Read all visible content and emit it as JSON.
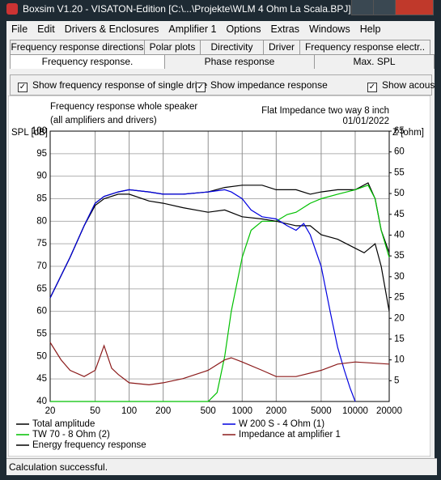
{
  "window": {
    "title": "Boxsim V1.20 - VISATON-Edition [C:\\...\\Projekte\\WLM 4 Ohm La Scala.BPJ]"
  },
  "menu": [
    "File",
    "Edit",
    "Drivers & Enclosures",
    "Amplifier 1",
    "Options",
    "Extras",
    "Windows",
    "Help"
  ],
  "tabs": {
    "row1": [
      "Frequency response directions",
      "Polar plots",
      "Directivity",
      "Driver",
      "Frequency response electr.."
    ],
    "row2": [
      "Frequency response.",
      "Phase response",
      "Max. SPL"
    ]
  },
  "checkboxes": [
    "Show frequency response of single drive",
    "Show impedance response",
    "Show acous"
  ],
  "status": "Calculation successful.",
  "chart_data": {
    "type": "line",
    "title": "Frequency response whole speaker",
    "subtitle": "(all amplifiers and drivers)",
    "annotations": [
      "Flat Impedance two way 8 inch",
      "01/01/2022"
    ],
    "y_label": "SPL [dB]",
    "y2_label": "Z [ohm]",
    "xscale": "log",
    "grid": true,
    "xlim": [
      20,
      20000
    ],
    "xticks": [
      20,
      50,
      100,
      200,
      500,
      1000,
      2000,
      5000,
      10000,
      20000
    ],
    "ylim": [
      40,
      100
    ],
    "yticks": [
      40,
      45,
      50,
      55,
      60,
      65,
      70,
      75,
      80,
      85,
      90,
      95,
      100
    ],
    "y2lim": [
      0,
      65
    ],
    "y2ticks": [
      5,
      10,
      15,
      20,
      25,
      30,
      35,
      40,
      45,
      50,
      55,
      60,
      65
    ],
    "series": [
      {
        "name": "Total amplitude",
        "color": "#000000",
        "x": [
          20,
          30,
          40,
          50,
          60,
          80,
          100,
          150,
          200,
          300,
          500,
          700,
          1000,
          1500,
          2000,
          3000,
          4000,
          5000,
          7000,
          10000,
          13000,
          15000,
          17000,
          20000
        ],
        "values": [
          63,
          72,
          79,
          84,
          85.5,
          86.5,
          87,
          86.5,
          86,
          86,
          86.5,
          87.5,
          88,
          88,
          87,
          87,
          86,
          86.5,
          87,
          87,
          88.5,
          85,
          78,
          73
        ]
      },
      {
        "name": "TW 70 - 8 Ohm (2)",
        "color": "#00c000",
        "x": [
          20,
          500,
          600,
          700,
          800,
          1000,
          1200,
          1500,
          2000,
          2500,
          3000,
          4000,
          5000,
          7000,
          10000,
          13000,
          15000,
          17000,
          20000
        ],
        "values": [
          40,
          40,
          42,
          50,
          60,
          72,
          78,
          80,
          80,
          81.5,
          82,
          84,
          85,
          86,
          87,
          88,
          85,
          78,
          72
        ]
      },
      {
        "name": "Energy frequency response",
        "color": "#000000",
        "x": [
          20,
          30,
          40,
          50,
          60,
          80,
          100,
          150,
          200,
          300,
          500,
          700,
          1000,
          1500,
          2000,
          3000,
          4000,
          5000,
          7000,
          10000,
          12000,
          15000,
          17000,
          20000
        ],
        "values": [
          63,
          72,
          79,
          83.5,
          85,
          86,
          86,
          84.5,
          84,
          83,
          82,
          82.5,
          81,
          80.5,
          80,
          79,
          79,
          77,
          76,
          74,
          73,
          75,
          70,
          60
        ]
      },
      {
        "name": "W 200 S - 4 Ohm (1)",
        "color": "#0000e0",
        "x": [
          20,
          30,
          40,
          50,
          60,
          80,
          100,
          150,
          200,
          300,
          500,
          700,
          800,
          1000,
          1200,
          1500,
          2000,
          2500,
          3000,
          3500,
          4000,
          5000,
          6000,
          7000,
          8000,
          9000,
          10000
        ],
        "values": [
          63,
          72,
          79,
          84,
          85.5,
          86.5,
          87,
          86.5,
          86,
          86,
          86.5,
          87,
          86.5,
          85,
          82.5,
          81,
          80.5,
          79,
          78,
          79.5,
          77,
          70,
          60,
          52,
          47,
          43,
          40
        ]
      },
      {
        "name": "Impedance at amplifier 1",
        "color": "#8b1a1a",
        "axis": "y2",
        "x": [
          20,
          25,
          30,
          40,
          50,
          60,
          70,
          80,
          100,
          150,
          200,
          300,
          500,
          700,
          800,
          1000,
          1500,
          2000,
          3000,
          5000,
          7000,
          10000,
          20000
        ],
        "values": [
          14.2,
          10,
          7.5,
          6,
          7.5,
          13.4,
          8,
          6.5,
          4.5,
          4,
          4.5,
          5.5,
          7.5,
          10,
          10.5,
          9.5,
          7.5,
          6,
          6,
          7.5,
          9,
          9.5,
          9
        ]
      }
    ]
  }
}
